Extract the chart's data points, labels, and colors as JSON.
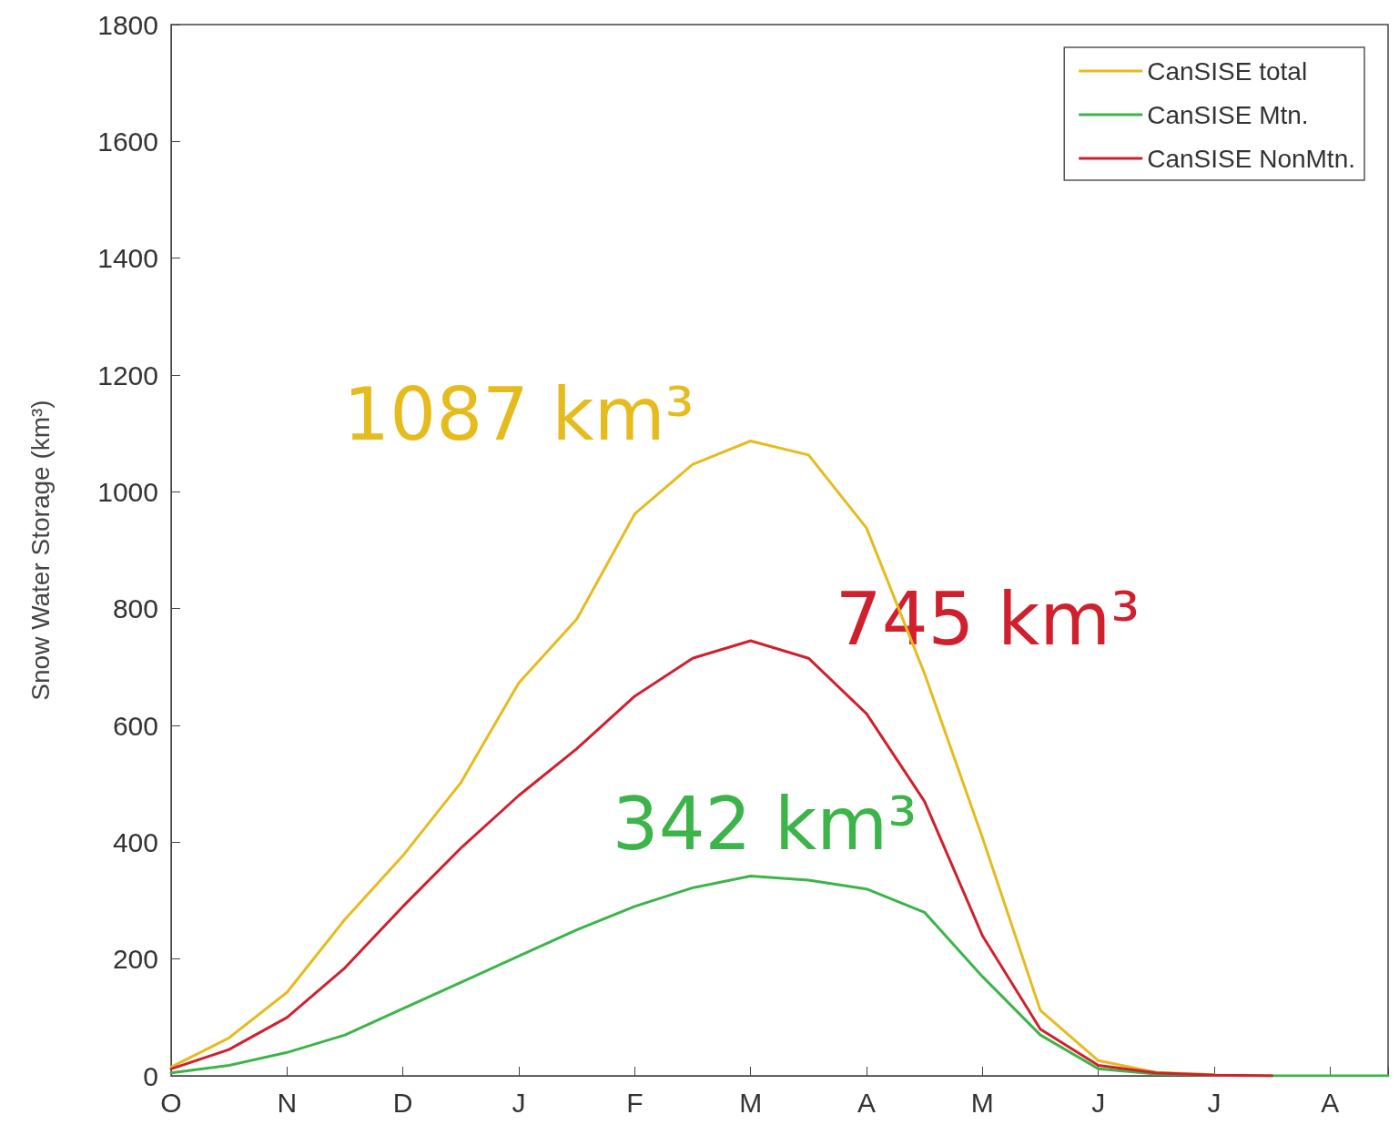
{
  "chart_data": {
    "type": "line",
    "ylabel": "Snow Water Storage (km³)",
    "categories": [
      "O",
      null,
      "N",
      null,
      "D",
      null,
      "J",
      null,
      "F",
      null,
      "M",
      null,
      "A",
      null,
      "M",
      null,
      "J",
      null,
      "J",
      null,
      "A",
      null
    ],
    "ylim": [
      0,
      1800
    ],
    "yticks": [
      0,
      200,
      400,
      600,
      800,
      1000,
      1200,
      1400,
      1600,
      1800
    ],
    "grid": false,
    "legend": "top right",
    "marker": "none",
    "line_style": "solid",
    "series": [
      {
        "name": "CanSISE total",
        "color": "#e6bb1e",
        "values": [
          15,
          65,
          143,
          268,
          377,
          502,
          673,
          782,
          962,
          1047,
          1087,
          1063,
          938,
          689,
          408,
          112,
          26,
          6,
          2,
          null,
          null,
          null
        ]
      },
      {
        "name": "CanSISE Mtn.",
        "color": "#3cb44a",
        "values": [
          5,
          18,
          40,
          70,
          115,
          160,
          205,
          250,
          290,
          322,
          342,
          335,
          320,
          280,
          170,
          70,
          12,
          3,
          1,
          0,
          0,
          0
        ]
      },
      {
        "name": "CanSISE NonMtn.",
        "color": "#d0202e",
        "values": [
          12,
          45,
          100,
          185,
          290,
          390,
          480,
          560,
          650,
          715,
          745,
          715,
          620,
          470,
          240,
          80,
          18,
          5,
          1,
          0,
          null,
          null
        ]
      }
    ],
    "annotations": [
      "1087 km³",
      "342 km³",
      "745 km³"
    ]
  }
}
